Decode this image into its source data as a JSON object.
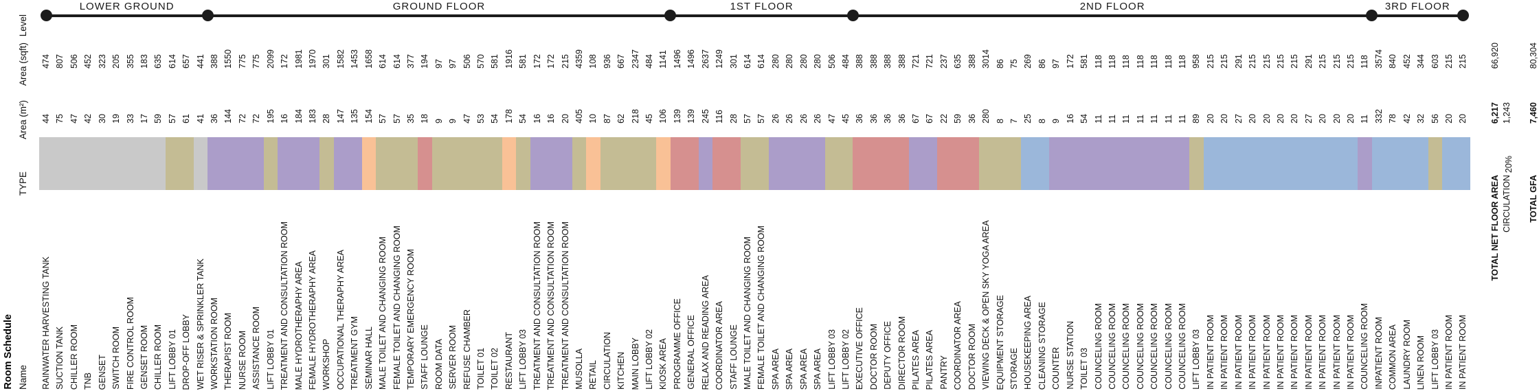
{
  "title": "Room Schedule",
  "axis_labels": {
    "level": "Level",
    "area_sqft": "Area (sqft)",
    "area_m2": "Area (m²)",
    "type": "TYPE",
    "name": "Name"
  },
  "type_colors": {
    "gray": "#C9C9C9",
    "tan": "#C4BC94",
    "purple": "#AB9DC9",
    "orange": "#F9C196",
    "rose": "#D6908F",
    "blue": "#9BB7DA"
  },
  "chart_data": {
    "type": "table",
    "title": "Room Schedule",
    "legend_position": "none",
    "floors": [
      {
        "label": "LOWER GROUND",
        "rooms": [
          {
            "name": "RAINWATER HARVESTING TANK",
            "m2": "44",
            "sqft": "474",
            "type": "gray"
          },
          {
            "name": "SUCTION TANK",
            "m2": "75",
            "sqft": "807",
            "type": "gray"
          },
          {
            "name": "CHILLER ROOM",
            "m2": "47",
            "sqft": "506",
            "type": "gray"
          },
          {
            "name": "TNB",
            "m2": "42",
            "sqft": "452",
            "type": "gray"
          },
          {
            "name": "GENSET",
            "m2": "30",
            "sqft": "323",
            "type": "gray"
          },
          {
            "name": "SWITCH ROOM",
            "m2": "19",
            "sqft": "205",
            "type": "gray"
          },
          {
            "name": "FIRE CONTROL ROOM",
            "m2": "33",
            "sqft": "355",
            "type": "gray"
          },
          {
            "name": "GENSET ROOM",
            "m2": "17",
            "sqft": "183",
            "type": "gray"
          },
          {
            "name": "CHILLER ROOM",
            "m2": "59",
            "sqft": "635",
            "type": "gray"
          },
          {
            "name": "LIFT LOBBY 01",
            "m2": "57",
            "sqft": "614",
            "type": "tan"
          },
          {
            "name": "DROP-OFF LOBBY",
            "m2": "61",
            "sqft": "657",
            "type": "tan"
          },
          {
            "name": "WET RISER & SPRINKLER TANK",
            "m2": "41",
            "sqft": "441",
            "type": "gray"
          }
        ]
      },
      {
        "label": "GROUND FLOOR",
        "rooms": [
          {
            "name": "WORKSTATION ROOM",
            "m2": "36",
            "sqft": "388",
            "type": "purple"
          },
          {
            "name": "THERAPIST ROOM",
            "m2": "144",
            "sqft": "1550",
            "type": "purple"
          },
          {
            "name": "NURSE ROOM",
            "m2": "72",
            "sqft": "775",
            "type": "purple"
          },
          {
            "name": "ASSISTANCE ROOM",
            "m2": "72",
            "sqft": "775",
            "type": "purple"
          },
          {
            "name": "LIFT LOBBY 01",
            "m2": "195",
            "sqft": "2099",
            "type": "tan"
          },
          {
            "name": "TREATMENT AND CONSULTATION ROOM",
            "m2": "16",
            "sqft": "172",
            "type": "purple"
          },
          {
            "name": "MALE HYDROTHERAPHY AREA",
            "m2": "184",
            "sqft": "1981",
            "type": "purple"
          },
          {
            "name": "FEMALE HYDROTHERAPHY AREA",
            "m2": "183",
            "sqft": "1970",
            "type": "purple"
          },
          {
            "name": "WORKSHOP",
            "m2": "28",
            "sqft": "301",
            "type": "tan"
          },
          {
            "name": "OCCUPATIONAL THERAPHY AREA",
            "m2": "147",
            "sqft": "1582",
            "type": "purple"
          },
          {
            "name": "TREATMENT GYM",
            "m2": "135",
            "sqft": "1453",
            "type": "purple"
          },
          {
            "name": "SEMINAR HALL",
            "m2": "154",
            "sqft": "1658",
            "type": "orange"
          },
          {
            "name": "MALE TOILET AND CHANGING ROOM",
            "m2": "57",
            "sqft": "614",
            "type": "tan"
          },
          {
            "name": "FEMALE TOILET AND CHANGING ROOM",
            "m2": "57",
            "sqft": "614",
            "type": "tan"
          },
          {
            "name": "TEMPORARY EMERGENCY ROOM",
            "m2": "35",
            "sqft": "377",
            "type": "tan"
          },
          {
            "name": "STAFF LOUNGE",
            "m2": "18",
            "sqft": "194",
            "type": "rose"
          },
          {
            "name": "ROOM DATA",
            "m2": "9",
            "sqft": "97",
            "type": "tan"
          },
          {
            "name": "SERVER ROOM",
            "m2": "9",
            "sqft": "97",
            "type": "tan"
          },
          {
            "name": "REFUSE CHAMBER",
            "m2": "47",
            "sqft": "506",
            "type": "tan"
          },
          {
            "name": "TOILET 01",
            "m2": "53",
            "sqft": "570",
            "type": "tan"
          },
          {
            "name": "TOILET 02",
            "m2": "54",
            "sqft": "581",
            "type": "tan"
          },
          {
            "name": "RESTAURANT",
            "m2": "178",
            "sqft": "1916",
            "type": "orange"
          },
          {
            "name": "LIFT LOBBY 03",
            "m2": "54",
            "sqft": "581",
            "type": "tan"
          },
          {
            "name": "TREATMENT AND CONSULTATION ROOM",
            "m2": "16",
            "sqft": "172",
            "type": "purple"
          },
          {
            "name": "TREATMENT AND CONSULTATION ROOM",
            "m2": "16",
            "sqft": "172",
            "type": "purple"
          },
          {
            "name": "TREATMENT AND CONSULTATION ROOM",
            "m2": "20",
            "sqft": "215",
            "type": "purple"
          },
          {
            "name": "MUSOLLA",
            "m2": "405",
            "sqft": "4359",
            "type": "tan"
          },
          {
            "name": "RETAIL",
            "m2": "10",
            "sqft": "108",
            "type": "orange"
          },
          {
            "name": "CIRCULATION",
            "m2": "87",
            "sqft": "936",
            "type": "tan"
          },
          {
            "name": "KITCHEN",
            "m2": "62",
            "sqft": "667",
            "type": "tan"
          },
          {
            "name": "MAIN LOBBY",
            "m2": "218",
            "sqft": "2347",
            "type": "tan"
          },
          {
            "name": "LIFT LOBBY 02",
            "m2": "45",
            "sqft": "484",
            "type": "tan"
          },
          {
            "name": "KIOSK AREA",
            "m2": "106",
            "sqft": "1141",
            "type": "orange"
          }
        ]
      },
      {
        "label": "1ST FLOOR",
        "rooms": [
          {
            "name": "PROGRAMME OFFICE",
            "m2": "139",
            "sqft": "1496",
            "type": "rose"
          },
          {
            "name": "GENERAL OFFICE",
            "m2": "139",
            "sqft": "1496",
            "type": "rose"
          },
          {
            "name": "RELAX AND READING AREA",
            "m2": "245",
            "sqft": "2637",
            "type": "purple"
          },
          {
            "name": "COORDINATOR AREA",
            "m2": "116",
            "sqft": "1249",
            "type": "rose"
          },
          {
            "name": "STAFF LOUNGE",
            "m2": "28",
            "sqft": "301",
            "type": "rose"
          },
          {
            "name": "MALE TOILET AND CHANGING ROOM",
            "m2": "57",
            "sqft": "614",
            "type": "tan"
          },
          {
            "name": "FEMALE TOILET AND CHANGING ROOM",
            "m2": "57",
            "sqft": "614",
            "type": "tan"
          },
          {
            "name": "SPA AREA",
            "m2": "26",
            "sqft": "280",
            "type": "purple"
          },
          {
            "name": "SPA AREA",
            "m2": "26",
            "sqft": "280",
            "type": "purple"
          },
          {
            "name": "SPA AREA",
            "m2": "26",
            "sqft": "280",
            "type": "purple"
          },
          {
            "name": "SPA AREA",
            "m2": "26",
            "sqft": "280",
            "type": "purple"
          },
          {
            "name": "LIFT LOBBY 03",
            "m2": "47",
            "sqft": "506",
            "type": "tan"
          },
          {
            "name": "LIFT LOBBY 02",
            "m2": "45",
            "sqft": "484",
            "type": "tan"
          }
        ]
      },
      {
        "label": "2ND FLOOR",
        "rooms": [
          {
            "name": "EXECUTIVE OFFICE",
            "m2": "36",
            "sqft": "388",
            "type": "rose"
          },
          {
            "name": "DOCTOR ROOM",
            "m2": "36",
            "sqft": "388",
            "type": "rose"
          },
          {
            "name": "DEPUTY OFFICE",
            "m2": "36",
            "sqft": "388",
            "type": "rose"
          },
          {
            "name": "DIRECTOR ROOM",
            "m2": "36",
            "sqft": "388",
            "type": "rose"
          },
          {
            "name": "PILATES AREA",
            "m2": "67",
            "sqft": "721",
            "type": "purple"
          },
          {
            "name": "PILATES AREA",
            "m2": "67",
            "sqft": "721",
            "type": "purple"
          },
          {
            "name": "PANTRY",
            "m2": "22",
            "sqft": "237",
            "type": "rose"
          },
          {
            "name": "COORDINATOR AREA",
            "m2": "59",
            "sqft": "635",
            "type": "rose"
          },
          {
            "name": "DOCTOR ROOM",
            "m2": "36",
            "sqft": "388",
            "type": "rose"
          },
          {
            "name": "VIEWING DECK & OPEN SKY YOGA AREA",
            "m2": "280",
            "sqft": "3014",
            "type": "tan"
          },
          {
            "name": "EQUIPMENT STORAGE",
            "m2": "8",
            "sqft": "86",
            "type": "tan"
          },
          {
            "name": "STORAGE",
            "m2": "7",
            "sqft": "75",
            "type": "tan"
          },
          {
            "name": "HOUSEKEEPING AREA",
            "m2": "25",
            "sqft": "269",
            "type": "blue"
          },
          {
            "name": "CLEANING STORAGE",
            "m2": "8",
            "sqft": "86",
            "type": "blue"
          },
          {
            "name": "COUNTER",
            "m2": "9",
            "sqft": "97",
            "type": "purple"
          },
          {
            "name": "NURSE STATION",
            "m2": "16",
            "sqft": "172",
            "type": "purple"
          },
          {
            "name": "TOILET 03",
            "m2": "54",
            "sqft": "581",
            "type": "purple"
          },
          {
            "name": "COUNCELING ROOM",
            "m2": "11",
            "sqft": "118",
            "type": "purple"
          },
          {
            "name": "COUNCELING ROOM",
            "m2": "11",
            "sqft": "118",
            "type": "purple"
          },
          {
            "name": "COUNCELING ROOM",
            "m2": "11",
            "sqft": "118",
            "type": "purple"
          },
          {
            "name": "COUNCELING ROOM",
            "m2": "11",
            "sqft": "118",
            "type": "purple"
          },
          {
            "name": "COUNCELING ROOM",
            "m2": "11",
            "sqft": "118",
            "type": "purple"
          },
          {
            "name": "COUNCELING ROOM",
            "m2": "11",
            "sqft": "118",
            "type": "purple"
          },
          {
            "name": "COUNCELING ROOM",
            "m2": "11",
            "sqft": "118",
            "type": "purple"
          },
          {
            "name": "LIFT LOBBY 03",
            "m2": "89",
            "sqft": "958",
            "type": "tan"
          },
          {
            "name": "IN PATIENT ROOM",
            "m2": "20",
            "sqft": "215",
            "type": "blue"
          },
          {
            "name": "IN PATIENT ROOM",
            "m2": "20",
            "sqft": "215",
            "type": "blue"
          },
          {
            "name": "IN PATIENT ROOM",
            "m2": "27",
            "sqft": "291",
            "type": "blue"
          },
          {
            "name": "IN PATIENT ROOM",
            "m2": "20",
            "sqft": "215",
            "type": "blue"
          },
          {
            "name": "IN PATIENT ROOM",
            "m2": "20",
            "sqft": "215",
            "type": "blue"
          },
          {
            "name": "IN PATIENT ROOM",
            "m2": "20",
            "sqft": "215",
            "type": "blue"
          },
          {
            "name": "IN PATIENT ROOM",
            "m2": "20",
            "sqft": "215",
            "type": "blue"
          },
          {
            "name": "IN PATIENT ROOM",
            "m2": "27",
            "sqft": "291",
            "type": "blue"
          },
          {
            "name": "IN PATIENT ROOM",
            "m2": "20",
            "sqft": "215",
            "type": "blue"
          },
          {
            "name": "IN PATIENT ROOM",
            "m2": "20",
            "sqft": "215",
            "type": "blue"
          },
          {
            "name": "IN PATIENT ROOM",
            "m2": "20",
            "sqft": "215",
            "type": "blue"
          },
          {
            "name": "COUNCELING ROOM",
            "m2": "11",
            "sqft": "118",
            "type": "purple"
          }
        ]
      },
      {
        "label": "3RD FLOOR",
        "rooms": [
          {
            "name": "INPATIENT ROOM",
            "m2": "332",
            "sqft": "3574",
            "type": "blue"
          },
          {
            "name": "COMMON AREA",
            "m2": "78",
            "sqft": "840",
            "type": "blue"
          },
          {
            "name": "LAUNDRY ROOM",
            "m2": "42",
            "sqft": "452",
            "type": "blue"
          },
          {
            "name": "LINEN ROOM",
            "m2": "32",
            "sqft": "344",
            "type": "blue"
          },
          {
            "name": "LIFT LOBBY 03",
            "m2": "56",
            "sqft": "603",
            "type": "tan"
          },
          {
            "name": "IN PATIENT ROOM",
            "m2": "20",
            "sqft": "215",
            "type": "blue"
          },
          {
            "name": "IN PATIENT ROOM",
            "m2": "20",
            "sqft": "215",
            "type": "blue"
          }
        ]
      }
    ],
    "totals": {
      "net": {
        "label": "TOTAL NET FLOOR AREA",
        "m2": "6,217",
        "sqft": "66,920"
      },
      "circulation": {
        "label": "CIRCULATION",
        "m2": "1,243",
        "share": "20%"
      },
      "gfa": {
        "label": "TOTAL GFA",
        "m2": "7,460",
        "sqft": "80,304"
      }
    }
  }
}
